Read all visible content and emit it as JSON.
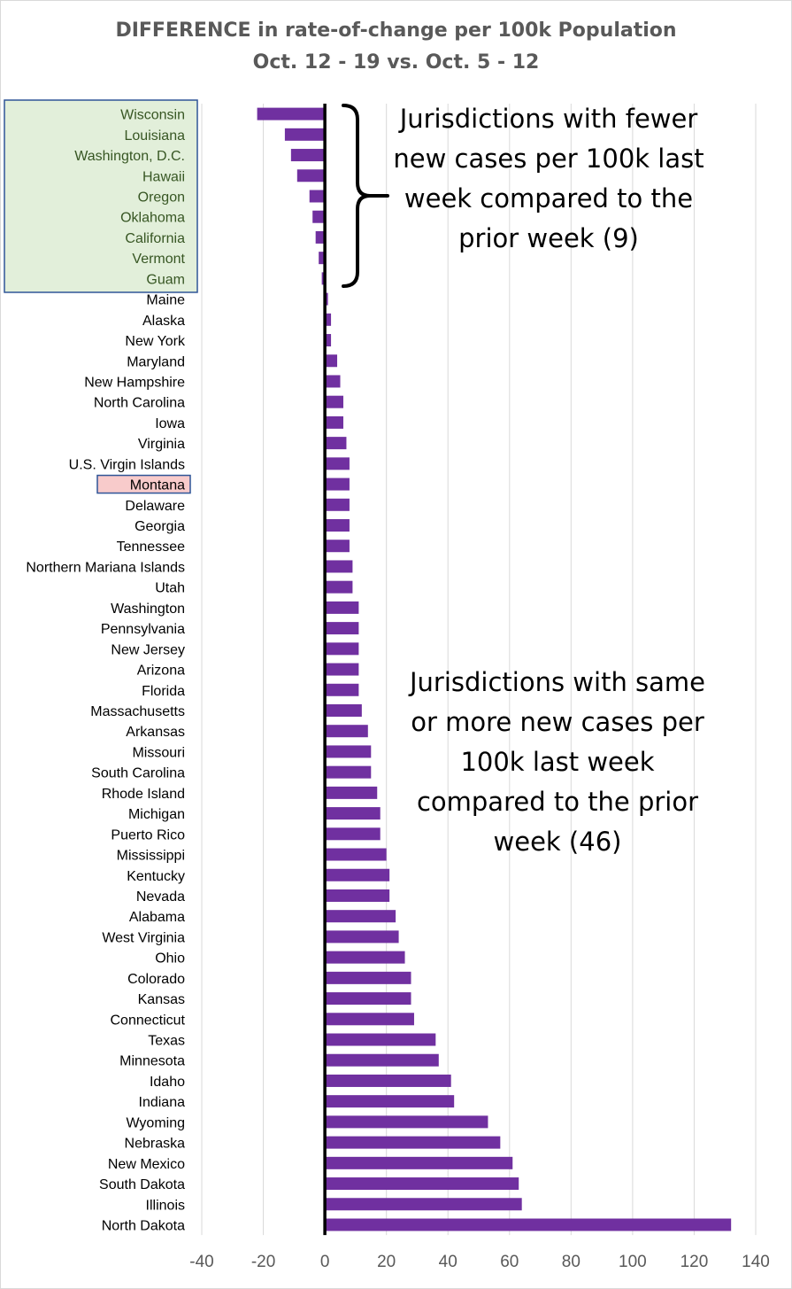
{
  "title": "DIFFERENCE in rate-of-change per 100k Population",
  "subtitle": "Oct. 12 - 19 vs. Oct. 5 - 12",
  "annotations": {
    "fewer": "Jurisdictions with fewer new cases per 100k last week compared to the prior week (9)",
    "more": "Jurisdictions with same or more new cases per 100k last week compared to the prior week (46)"
  },
  "colors": {
    "bar": "#7030a0",
    "fewer_box_fill": "#e2efda",
    "fewer_box_border": "#2f5597",
    "highlight_fill": "#f8cbcb",
    "highlight_border": "#2f5597",
    "zero_line": "#000000",
    "grid": "#d9d9d9"
  },
  "chart_data": {
    "type": "bar",
    "orientation": "horizontal",
    "title": "DIFFERENCE in rate-of-change per 100k Population",
    "subtitle": "Oct. 12 - 19 vs. Oct. 5 - 12",
    "xlim": [
      -40,
      140
    ],
    "xticks": [
      -40,
      -20,
      0,
      20,
      40,
      60,
      80,
      100,
      120,
      140
    ],
    "grid": true,
    "highlighted_category": "Montana",
    "categories": [
      "Wisconsin",
      "Louisiana",
      "Washington, D.C.",
      "Hawaii",
      "Oregon",
      "Oklahoma",
      "California",
      "Vermont",
      "Guam",
      "Maine",
      "Alaska",
      "New York",
      "Maryland",
      "New Hampshire",
      "North Carolina",
      "Iowa",
      "Virginia",
      "U.S. Virgin Islands",
      "Montana",
      "Delaware",
      "Georgia",
      "Tennessee",
      "Northern Mariana Islands",
      "Utah",
      "Washington",
      "Pennsylvania",
      "New Jersey",
      "Arizona",
      "Florida",
      "Massachusetts",
      "Arkansas",
      "Missouri",
      "South Carolina",
      "Rhode Island",
      "Michigan",
      "Puerto Rico",
      "Mississippi",
      "Kentucky",
      "Nevada",
      "Alabama",
      "West Virginia",
      "Ohio",
      "Colorado",
      "Kansas",
      "Connecticut",
      "Texas",
      "Minnesota",
      "Idaho",
      "Indiana",
      "Wyoming",
      "Nebraska",
      "New Mexico",
      "South Dakota",
      "Illinois",
      "North Dakota"
    ],
    "values": [
      -22,
      -13,
      -11,
      -9,
      -5,
      -4,
      -3,
      -2,
      -1,
      1,
      2,
      2,
      4,
      5,
      6,
      6,
      7,
      8,
      8,
      8,
      8,
      8,
      9,
      9,
      11,
      11,
      11,
      11,
      11,
      12,
      14,
      15,
      15,
      17,
      18,
      18,
      20,
      21,
      21,
      23,
      24,
      26,
      28,
      28,
      29,
      36,
      37,
      41,
      42,
      53,
      57,
      61,
      63,
      64,
      132
    ]
  }
}
